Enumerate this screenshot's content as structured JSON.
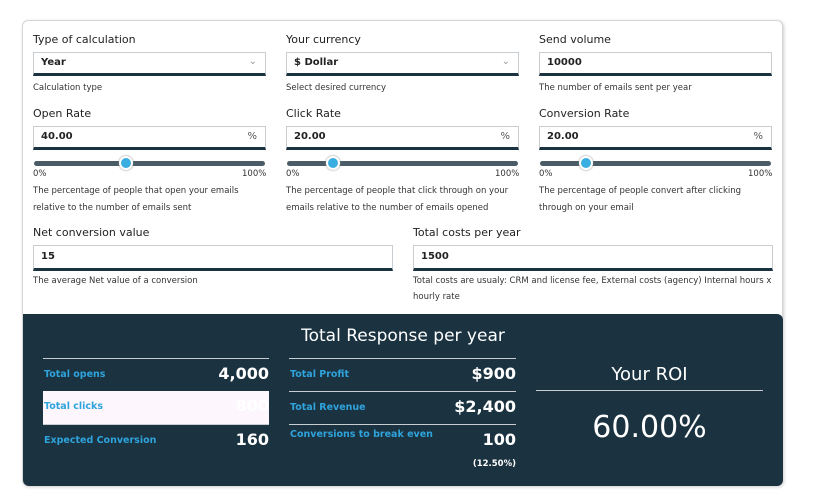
{
  "form": {
    "calc_type": {
      "label": "Type of calculation",
      "value": "Year",
      "help": "Calculation type",
      "icon": "chevron-down-icon"
    },
    "currency": {
      "label": "Your currency",
      "value": "$ Dollar",
      "help": "Select desired currency",
      "icon": "chevron-down-icon"
    },
    "send_volume": {
      "label": "Send volume",
      "value": "10000",
      "help": "The number of emails sent per year"
    },
    "open_rate": {
      "label": "Open Rate",
      "value": "40.00",
      "suffix": "%",
      "slider_percent": 40,
      "min": "0%",
      "max": "100%",
      "help1": "The percentage of people that open your emails",
      "help2": "relative to the number of emails sent"
    },
    "click_rate": {
      "label": "Click Rate",
      "value": "20.00",
      "suffix": "%",
      "slider_percent": 20,
      "min": "0%",
      "max": "100%",
      "help1": "The percentage of people that click through on your",
      "help2": "emails relative to the number of emails opened"
    },
    "conversion_rate": {
      "label": "Conversion Rate",
      "value": "20.00",
      "suffix": "%",
      "slider_percent": 20,
      "min": "0%",
      "max": "100%",
      "help1": "The percentage of people convert after clicking",
      "help2": "through on your email"
    },
    "net_conversion": {
      "label": "Net conversion value",
      "value": "15",
      "help": "The average Net value of a conversion"
    },
    "total_costs": {
      "label": "Total costs per year",
      "value": "1500",
      "help1": "Total costs are usualy: CRM and license fee, External costs (agency) Internal hours x",
      "help2": "hourly rate"
    }
  },
  "results": {
    "title": "Total Response per year",
    "left": [
      {
        "label": "Total opens",
        "value": "4,000"
      },
      {
        "label": "Total clicks",
        "value": "800"
      },
      {
        "label": "Expected Conversion",
        "value": "160"
      }
    ],
    "middle": [
      {
        "label": "Total Profit",
        "value": "$900"
      },
      {
        "label": "Total Revenue",
        "value": "$2,400"
      },
      {
        "label": "Conversions to break even",
        "value": "100",
        "sub": "(12.50%)"
      }
    ],
    "roi": {
      "label": "Your ROI",
      "value": "60.00%"
    }
  },
  "colors": {
    "panel": "#1b3340",
    "accent": "#2fa3dc",
    "thumb": "#3aaee0"
  }
}
